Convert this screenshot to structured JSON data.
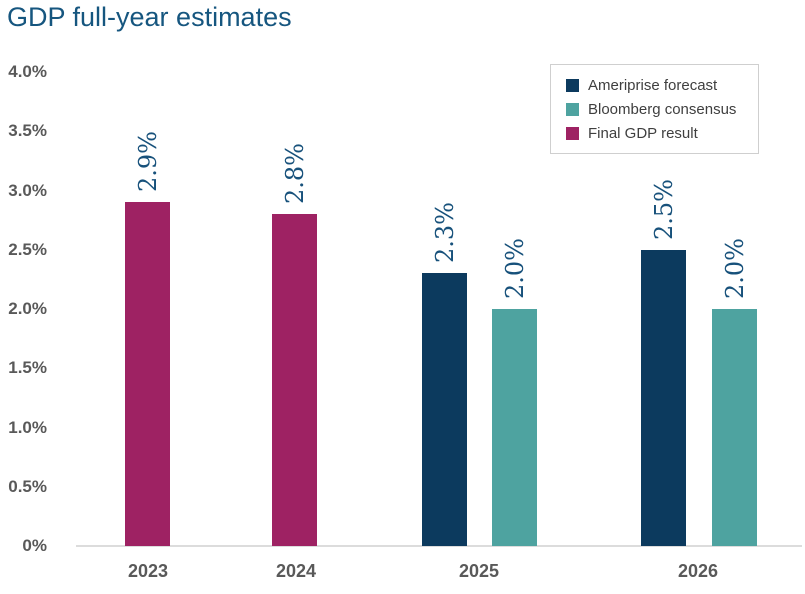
{
  "title": "GDP full-year estimates",
  "colors": {
    "title": "#16567f",
    "value_label": "#17517b",
    "axis_text": "#595959",
    "axis_line": "#dcdcdc",
    "navy": "#0c3a5e",
    "teal": "#4ea3a0",
    "magenta": "#9e2263"
  },
  "legend": {
    "items": [
      {
        "label": "Ameriprise forecast",
        "color": "#0c3a5e"
      },
      {
        "label": "Bloomberg consensus",
        "color": "#4ea3a0"
      },
      {
        "label": "Final GDP result",
        "color": "#9e2263"
      }
    ]
  },
  "chart_data": {
    "type": "bar",
    "title": "GDP full-year estimates",
    "categories": [
      "2023",
      "2024",
      "2025",
      "2026"
    ],
    "series": [
      {
        "name": "Ameriprise forecast",
        "color": "#0c3a5e",
        "values": [
          null,
          null,
          2.3,
          2.5
        ],
        "labels": [
          null,
          null,
          "2.3%",
          "2.5%"
        ]
      },
      {
        "name": "Bloomberg consensus",
        "color": "#4ea3a0",
        "values": [
          null,
          null,
          2.0,
          2.0
        ],
        "labels": [
          null,
          null,
          "2.0%",
          "2.0%"
        ]
      },
      {
        "name": "Final GDP result",
        "color": "#9e2263",
        "values": [
          2.9,
          2.8,
          null,
          null
        ],
        "labels": [
          "2.9%",
          "2.8%",
          null,
          null
        ]
      }
    ],
    "ylim": [
      0,
      4.0
    ],
    "ytick_values": [
      4.0,
      3.5,
      3.0,
      2.5,
      2.0,
      1.5,
      1.0,
      0.5,
      0
    ],
    "ytick_labels": [
      "4.0%",
      "3.5%",
      "3.0%",
      "2.5%",
      "2.0%",
      "1.5%",
      "1.0%",
      "0.5%",
      "0%"
    ],
    "grid": false,
    "legend_position": "top-right",
    "value_label_rotation_deg": 90
  }
}
